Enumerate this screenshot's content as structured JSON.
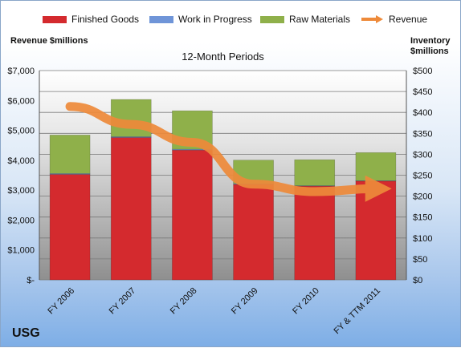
{
  "company": "USG",
  "chart_data": {
    "type": "bar",
    "title": "12-Month Periods",
    "categories": [
      "FY 2006",
      "FY 2007",
      "FY 2008",
      "FY 2009",
      "FY 2010",
      "FY & TTM 2011"
    ],
    "stacked": true,
    "series": [
      {
        "name": "Finished Goods",
        "axis": "right",
        "color": "#d42a2e",
        "values": [
          252,
          340,
          310,
          228,
          224,
          236
        ]
      },
      {
        "name": "Work in Progress",
        "axis": "right",
        "color": "#6f95d8",
        "values": [
          2,
          2,
          2,
          2,
          1,
          1
        ]
      },
      {
        "name": "Raw Materials",
        "axis": "right",
        "color": "#8fb04a",
        "values": [
          92,
          89,
          92,
          56,
          62,
          67
        ]
      },
      {
        "name": "Revenue",
        "axis": "left",
        "type": "line",
        "color": "#ee8a3a",
        "values": [
          5800,
          5200,
          4600,
          3200,
          2950,
          3050
        ]
      }
    ],
    "ylabel_left": "Revenue $millions",
    "ylabel_right": "Inventory $millions",
    "ylim_left": [
      0,
      7000
    ],
    "ylim_right": [
      0,
      500
    ],
    "yticks_left": [
      "$-",
      "$1,000",
      "$2,000",
      "$3,000",
      "$4,000",
      "$5,000",
      "$6,000",
      "$7,000"
    ],
    "yticks_right": [
      "$0",
      "$50",
      "$100",
      "$150",
      "$200",
      "$250",
      "$300",
      "$350",
      "$400",
      "$450",
      "$500"
    ],
    "grid": true,
    "legend_position": "top"
  }
}
